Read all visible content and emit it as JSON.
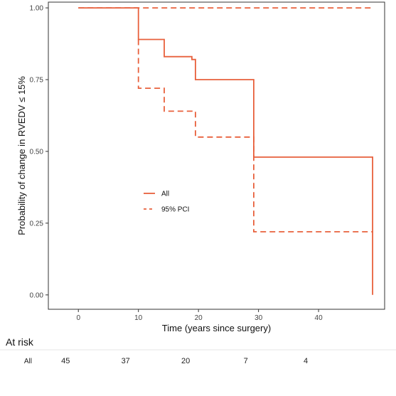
{
  "chart_data": {
    "type": "line",
    "step": true,
    "xlabel": "Time (years since surgery)",
    "ylabel": "Probability of change in RVEDV ≤ 15%",
    "xlim": [
      -5,
      51
    ],
    "ylim": [
      -0.05,
      1.02
    ],
    "x_ticks": [
      0,
      10,
      20,
      30,
      40
    ],
    "y_ticks": [
      0.0,
      0.25,
      0.5,
      0.75,
      1.0
    ],
    "y_tick_labels": [
      "0.00",
      "0.25",
      "0.50",
      "0.75",
      "1.00"
    ],
    "grid": false,
    "legend_position": "center-left",
    "colors": {
      "series": "#e8603c",
      "axis": "#333333"
    },
    "series": [
      {
        "name": "All",
        "style": "solid",
        "points": [
          [
            0,
            1.0
          ],
          [
            10,
            1.0
          ],
          [
            10,
            0.89
          ],
          [
            14.3,
            0.89
          ],
          [
            14.3,
            0.83
          ],
          [
            18.9,
            0.83
          ],
          [
            18.9,
            0.82
          ],
          [
            19.5,
            0.82
          ],
          [
            19.5,
            0.75
          ],
          [
            29.2,
            0.75
          ],
          [
            29.2,
            0.48
          ],
          [
            49,
            0.48
          ],
          [
            49,
            0.0
          ]
        ]
      },
      {
        "name": "95% PCI",
        "style": "dashed",
        "points": [
          [
            0,
            1.0
          ],
          [
            49,
            1.0
          ]
        ]
      },
      {
        "name": "",
        "style": "dashed",
        "points": [
          [
            10,
            0.89
          ],
          [
            10,
            0.72
          ],
          [
            14.3,
            0.72
          ],
          [
            14.3,
            0.64
          ],
          [
            19.5,
            0.64
          ],
          [
            19.5,
            0.55
          ],
          [
            29.2,
            0.55
          ],
          [
            29.2,
            0.22
          ],
          [
            49,
            0.22
          ]
        ]
      }
    ],
    "at_risk": {
      "title": "At risk",
      "row_label": "All",
      "times": [
        0,
        10,
        20,
        30,
        40
      ],
      "counts": [
        "45",
        "37",
        "20",
        "7",
        "4"
      ]
    }
  }
}
